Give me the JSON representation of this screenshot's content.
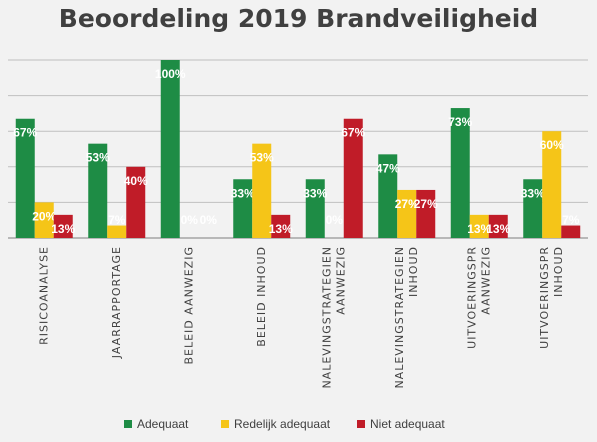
{
  "chart_data": {
    "type": "bar",
    "title": "Beoordeling 2019 Brandveiligheid",
    "categories": [
      [
        "RISICOANALYSE"
      ],
      [
        "JAARRAPPORTAGE"
      ],
      [
        "BELEID AANWEZIG"
      ],
      [
        "BELEID INHOUD"
      ],
      [
        "NALEVINGSTRATEGIEN",
        "AANWEZIG"
      ],
      [
        "NALEVINGSTRATEGIEN",
        "INHOUD"
      ],
      [
        "UITVOERINGSPR",
        "AANWEZIG"
      ],
      [
        "UITVOERINGSPR",
        "INHOUD"
      ]
    ],
    "series": [
      {
        "name": "Adequaat",
        "color": "#1e8c45",
        "values": [
          67,
          53,
          100,
          33,
          33,
          47,
          73,
          33
        ]
      },
      {
        "name": "Redelijk adequaat",
        "color": "#f5c518",
        "values": [
          20,
          7,
          0,
          53,
          0,
          27,
          13,
          60
        ]
      },
      {
        "name": "Niet adequaat",
        "color": "#c01c28",
        "values": [
          13,
          40,
          0,
          13,
          67,
          27,
          13,
          7
        ]
      }
    ],
    "value_suffix": "%",
    "ylim": [
      0,
      100
    ],
    "grid": true,
    "legend_position": "bottom"
  }
}
